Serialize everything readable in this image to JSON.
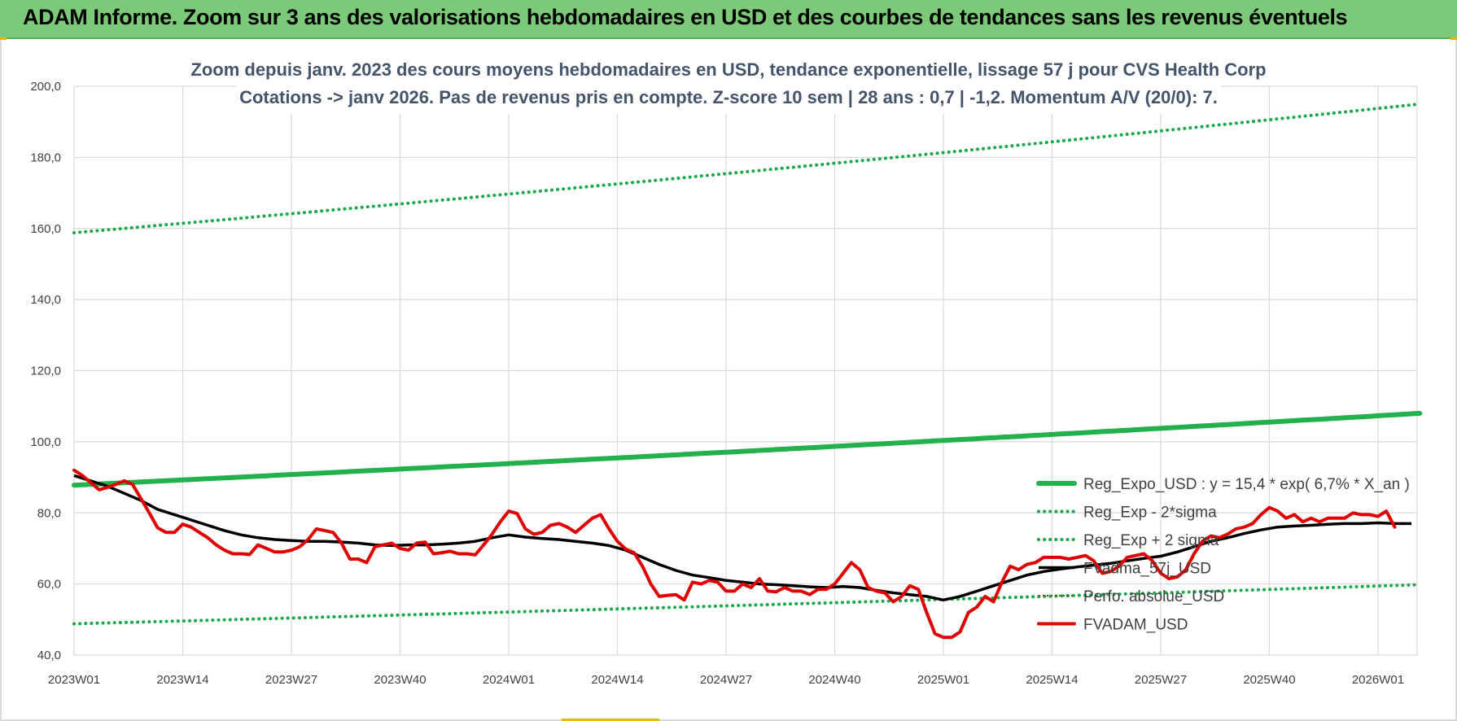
{
  "header": {
    "title": "ADAM Informe. Zoom sur 3 ans des valorisations hebdomadaires en USD et des courbes de tendances sans les revenus éventuels"
  },
  "colors": {
    "header_bg": "#7dc97a",
    "reg_expo": "#22b14c",
    "sigma_bands": "#1aa84a",
    "fvadma": "#000000",
    "perfo": "#8b4513",
    "fvadam": "#e00000",
    "grid": "#d9d9d9"
  },
  "chart_data": {
    "type": "line",
    "title_line1": "Zoom depuis janv. 2023 des cours moyens hebdomadaires en USD, tendance exponentielle, lissage 57 j pour CVS Health Corp",
    "title_line2": "Cotations -> janv 2026. Pas de revenus pris en compte. Z-score 10 sem | 28 ans : 0,7 | -1,2. Momentum A/V (20/0): 7.",
    "xlabel": "",
    "ylabel": "",
    "ylim": [
      40,
      200
    ],
    "yticks": [
      "40,0",
      "60,0",
      "80,0",
      "100,0",
      "120,0",
      "140,0",
      "160,0",
      "180,0",
      "200,0"
    ],
    "ytick_values": [
      40,
      60,
      80,
      100,
      120,
      140,
      160,
      180,
      200
    ],
    "x_range_weeks": [
      0,
      161
    ],
    "xticks": [
      "2023W01",
      "2023W14",
      "2023W27",
      "2023W40",
      "2024W01",
      "2024W14",
      "2024W27",
      "2024W40",
      "2025W01",
      "2025W14",
      "2025W27",
      "2025W40",
      "2026W01"
    ],
    "xtick_weeks": [
      0,
      13,
      26,
      39,
      52,
      65,
      78,
      91,
      104,
      117,
      130,
      143,
      156
    ],
    "grid": true,
    "legend_position": "right",
    "series": [
      {
        "name": "Reg_Expo_USD : y = 15,4 * exp( 6,7% *  X_an )",
        "style": "solid-thick",
        "color": "#22b14c",
        "x": [
          0,
          161
        ],
        "y_start": 87.8,
        "y_end": 108.0,
        "kind": "exponential"
      },
      {
        "name": "Reg_Exp - 2*sigma",
        "style": "dotted",
        "color": "#1aa84a",
        "y_start": 48.8,
        "y_end": 59.8,
        "kind": "exponential"
      },
      {
        "name": "Reg_Exp + 2 sigma",
        "style": "dotted",
        "color": "#1aa84a",
        "y_start": 158.8,
        "y_end": 195.0,
        "kind": "exponential"
      },
      {
        "name": "FVadma_57j_USD",
        "style": "solid",
        "color": "#000000",
        "points": [
          [
            0,
            90.5
          ],
          [
            2,
            89.0
          ],
          [
            4,
            87.5
          ],
          [
            6,
            85.5
          ],
          [
            8,
            83.5
          ],
          [
            10,
            81.0
          ],
          [
            12,
            79.5
          ],
          [
            14,
            78.0
          ],
          [
            16,
            76.5
          ],
          [
            18,
            75.0
          ],
          [
            20,
            73.8
          ],
          [
            22,
            73.0
          ],
          [
            24,
            72.5
          ],
          [
            26,
            72.2
          ],
          [
            28,
            72.0
          ],
          [
            30,
            72.0
          ],
          [
            32,
            71.8
          ],
          [
            34,
            71.5
          ],
          [
            36,
            71.0
          ],
          [
            38,
            70.8
          ],
          [
            40,
            71.0
          ],
          [
            42,
            71.0
          ],
          [
            44,
            71.2
          ],
          [
            46,
            71.5
          ],
          [
            48,
            72.0
          ],
          [
            50,
            73.0
          ],
          [
            52,
            73.8
          ],
          [
            54,
            73.2
          ],
          [
            56,
            72.8
          ],
          [
            58,
            72.5
          ],
          [
            60,
            72.0
          ],
          [
            62,
            71.5
          ],
          [
            64,
            70.8
          ],
          [
            66,
            69.5
          ],
          [
            68,
            67.5
          ],
          [
            70,
            65.5
          ],
          [
            72,
            63.8
          ],
          [
            74,
            62.5
          ],
          [
            76,
            61.8
          ],
          [
            78,
            61.0
          ],
          [
            80,
            60.5
          ],
          [
            82,
            60.0
          ],
          [
            84,
            59.8
          ],
          [
            86,
            59.5
          ],
          [
            88,
            59.2
          ],
          [
            90,
            59.0
          ],
          [
            92,
            59.3
          ],
          [
            94,
            59.0
          ],
          [
            96,
            58.2
          ],
          [
            98,
            57.5
          ],
          [
            100,
            57.0
          ],
          [
            102,
            56.5
          ],
          [
            104,
            55.5
          ],
          [
            106,
            56.5
          ],
          [
            108,
            58.0
          ],
          [
            110,
            59.5
          ],
          [
            112,
            61.0
          ],
          [
            114,
            62.5
          ],
          [
            116,
            63.5
          ],
          [
            118,
            64.2
          ],
          [
            120,
            64.8
          ],
          [
            122,
            65.3
          ],
          [
            124,
            65.8
          ],
          [
            126,
            66.5
          ],
          [
            128,
            67.2
          ],
          [
            130,
            67.8
          ],
          [
            132,
            69.0
          ],
          [
            134,
            70.5
          ],
          [
            136,
            72.0
          ],
          [
            138,
            73.0
          ],
          [
            140,
            74.2
          ],
          [
            142,
            75.2
          ],
          [
            144,
            76.0
          ],
          [
            146,
            76.3
          ],
          [
            148,
            76.5
          ],
          [
            150,
            76.8
          ],
          [
            152,
            77.0
          ],
          [
            154,
            77.0
          ],
          [
            156,
            77.2
          ],
          [
            158,
            77.0
          ],
          [
            160,
            77.0
          ]
        ]
      },
      {
        "name": "Perfo. absolue_USD",
        "style": "dotted-thin",
        "color": "#8b4513",
        "points": []
      },
      {
        "name": "FVADAM_USD",
        "style": "solid-thick",
        "color": "#e00000",
        "points": [
          [
            0,
            92.0
          ],
          [
            1,
            90.5
          ],
          [
            2,
            88.5
          ],
          [
            3,
            86.5
          ],
          [
            4,
            87.2
          ],
          [
            5,
            88.0
          ],
          [
            6,
            89.0
          ],
          [
            7,
            88.0
          ],
          [
            8,
            84.0
          ],
          [
            9,
            80.0
          ],
          [
            10,
            75.8
          ],
          [
            11,
            74.5
          ],
          [
            12,
            74.5
          ],
          [
            13,
            76.8
          ],
          [
            14,
            76.0
          ],
          [
            15,
            74.5
          ],
          [
            16,
            73.0
          ],
          [
            17,
            71.0
          ],
          [
            18,
            69.5
          ],
          [
            19,
            68.5
          ],
          [
            20,
            68.5
          ],
          [
            21,
            68.3
          ],
          [
            22,
            71.0
          ],
          [
            23,
            70.0
          ],
          [
            24,
            69.0
          ],
          [
            25,
            69.0
          ],
          [
            26,
            69.5
          ],
          [
            27,
            70.5
          ],
          [
            28,
            72.5
          ],
          [
            29,
            75.5
          ],
          [
            30,
            75.0
          ],
          [
            31,
            74.5
          ],
          [
            32,
            71.5
          ],
          [
            33,
            67.0
          ],
          [
            34,
            67.0
          ],
          [
            35,
            66.0
          ],
          [
            36,
            70.5
          ],
          [
            37,
            71.0
          ],
          [
            38,
            71.5
          ],
          [
            39,
            70.0
          ],
          [
            40,
            69.5
          ],
          [
            41,
            71.5
          ],
          [
            42,
            71.8
          ],
          [
            43,
            68.5
          ],
          [
            44,
            68.8
          ],
          [
            45,
            69.2
          ],
          [
            46,
            68.5
          ],
          [
            47,
            68.5
          ],
          [
            48,
            68.2
          ],
          [
            49,
            71.0
          ],
          [
            50,
            74.0
          ],
          [
            51,
            77.5
          ],
          [
            52,
            80.5
          ],
          [
            53,
            79.8
          ],
          [
            54,
            75.5
          ],
          [
            55,
            74.0
          ],
          [
            56,
            74.5
          ],
          [
            57,
            76.5
          ],
          [
            58,
            77.0
          ],
          [
            59,
            76.0
          ],
          [
            60,
            74.5
          ],
          [
            61,
            76.5
          ],
          [
            62,
            78.5
          ],
          [
            63,
            79.5
          ],
          [
            64,
            75.5
          ],
          [
            65,
            72.0
          ],
          [
            66,
            69.8
          ],
          [
            67,
            68.8
          ],
          [
            68,
            65.0
          ],
          [
            69,
            60.0
          ],
          [
            70,
            56.5
          ],
          [
            71,
            56.8
          ],
          [
            72,
            57.0
          ],
          [
            73,
            55.5
          ],
          [
            74,
            60.5
          ],
          [
            75,
            60.0
          ],
          [
            76,
            61.0
          ],
          [
            77,
            60.5
          ],
          [
            78,
            58.0
          ],
          [
            79,
            58.0
          ],
          [
            80,
            60.0
          ],
          [
            81,
            59.0
          ],
          [
            82,
            61.5
          ],
          [
            83,
            58.0
          ],
          [
            84,
            57.8
          ],
          [
            85,
            59.0
          ],
          [
            86,
            58.0
          ],
          [
            87,
            58.0
          ],
          [
            88,
            57.0
          ],
          [
            89,
            58.5
          ],
          [
            90,
            58.5
          ],
          [
            91,
            60.0
          ],
          [
            92,
            63.0
          ],
          [
            93,
            66.0
          ],
          [
            94,
            64.0
          ],
          [
            95,
            59.0
          ],
          [
            96,
            58.0
          ],
          [
            97,
            57.5
          ],
          [
            98,
            55.0
          ],
          [
            99,
            56.5
          ],
          [
            100,
            59.5
          ],
          [
            101,
            58.5
          ],
          [
            102,
            52.0
          ],
          [
            103,
            46.0
          ],
          [
            104,
            45.0
          ],
          [
            105,
            45.0
          ],
          [
            106,
            46.5
          ],
          [
            107,
            52.0
          ],
          [
            108,
            53.5
          ],
          [
            109,
            56.5
          ],
          [
            110,
            55.0
          ],
          [
            111,
            60.5
          ],
          [
            112,
            65.0
          ],
          [
            113,
            64.0
          ],
          [
            114,
            65.5
          ],
          [
            115,
            66.0
          ],
          [
            116,
            67.5
          ],
          [
            117,
            67.5
          ],
          [
            118,
            67.5
          ],
          [
            119,
            67.0
          ],
          [
            120,
            67.5
          ],
          [
            121,
            68.0
          ],
          [
            122,
            66.5
          ],
          [
            123,
            63.0
          ],
          [
            124,
            63.5
          ],
          [
            125,
            65.0
          ],
          [
            126,
            67.5
          ],
          [
            127,
            68.0
          ],
          [
            128,
            68.5
          ],
          [
            129,
            66.5
          ],
          [
            130,
            63.0
          ],
          [
            131,
            61.5
          ],
          [
            132,
            62.0
          ],
          [
            133,
            64.0
          ],
          [
            134,
            68.5
          ],
          [
            135,
            72.0
          ],
          [
            136,
            73.5
          ],
          [
            137,
            73.0
          ],
          [
            138,
            74.0
          ],
          [
            139,
            75.5
          ],
          [
            140,
            76.0
          ],
          [
            141,
            77.0
          ],
          [
            142,
            79.5
          ],
          [
            143,
            81.5
          ],
          [
            144,
            80.5
          ],
          [
            145,
            78.5
          ],
          [
            146,
            79.5
          ],
          [
            147,
            77.5
          ],
          [
            148,
            78.5
          ],
          [
            149,
            77.5
          ],
          [
            150,
            78.5
          ],
          [
            151,
            78.5
          ],
          [
            152,
            78.5
          ],
          [
            153,
            80.0
          ],
          [
            154,
            79.5
          ],
          [
            155,
            79.5
          ],
          [
            156,
            79.0
          ],
          [
            157,
            80.5
          ],
          [
            158,
            76.0
          ]
        ]
      }
    ]
  }
}
